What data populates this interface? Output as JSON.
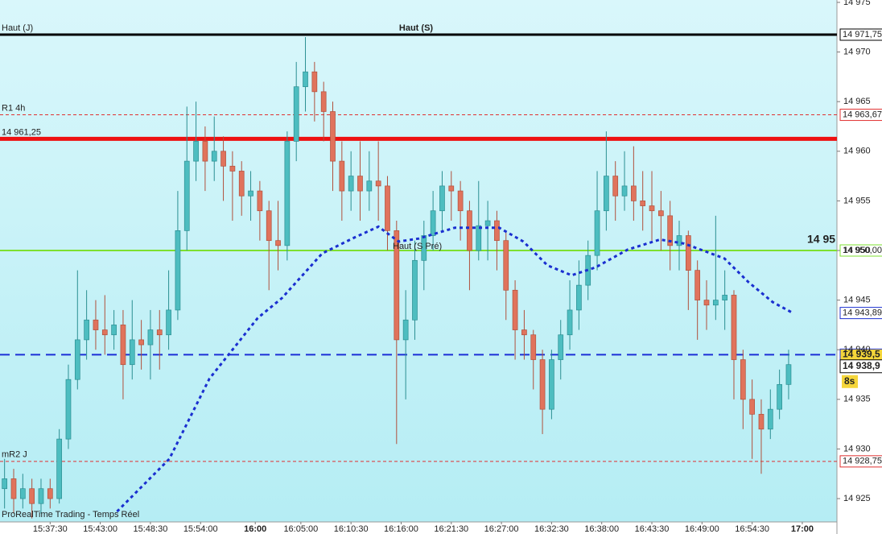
{
  "chart_data": {
    "type": "candlestick",
    "footer": "ProRealTime Trading - Temps Réel",
    "xlim": [
      932,
      1023.8
    ],
    "ylim": [
      14922.65,
      14975.24
    ],
    "xticks": [
      {
        "value": 937.5,
        "label": "15:37:30"
      },
      {
        "value": 943,
        "label": "15:43:00"
      },
      {
        "value": 948.5,
        "label": "15:48:30"
      },
      {
        "value": 954,
        "label": "15:54:00"
      },
      {
        "value": 960,
        "label": "16:00"
      },
      {
        "value": 965,
        "label": "16:05:00"
      },
      {
        "value": 970.5,
        "label": "16:10:30"
      },
      {
        "value": 976,
        "label": "16:16:00"
      },
      {
        "value": 981.5,
        "label": "16:21:30"
      },
      {
        "value": 987,
        "label": "16:27:00"
      },
      {
        "value": 992.5,
        "label": "16:32:30"
      },
      {
        "value": 998,
        "label": "16:38:00"
      },
      {
        "value": 1003.5,
        "label": "16:43:30"
      },
      {
        "value": 1009,
        "label": "16:49:00"
      },
      {
        "value": 1014.5,
        "label": "16:54:30"
      },
      {
        "value": 1020,
        "label": "17:00"
      }
    ],
    "yticks": [
      {
        "value": 14925,
        "label": "14 925"
      },
      {
        "value": 14930,
        "label": "14 930"
      },
      {
        "value": 14935,
        "label": "14 935"
      },
      {
        "value": 14940,
        "label": "14 940"
      },
      {
        "value": 14945,
        "label": "14 945"
      },
      {
        "value": 14950,
        "label": "14 950"
      },
      {
        "value": 14955,
        "label": "14 955"
      },
      {
        "value": 14960,
        "label": "14 960"
      },
      {
        "value": 14965,
        "label": "14 965"
      },
      {
        "value": 14970,
        "label": "14 970"
      },
      {
        "value": 14975,
        "label": "14 975"
      }
    ],
    "up_color": "#4dbdc0",
    "down_color": "#e0735c",
    "x": [
      932.5,
      933.5,
      934.5,
      935.5,
      936.5,
      937.5,
      938.5,
      939.5,
      940.5,
      941.5,
      942.5,
      943.5,
      944.5,
      945.5,
      946.5,
      947.5,
      948.5,
      949.5,
      950.5,
      951.5,
      952.5,
      953.5,
      954.5,
      955.5,
      956.5,
      957.5,
      958.5,
      959.5,
      960.5,
      961.5,
      962.5,
      963.5,
      964.5,
      965.5,
      966.5,
      967.5,
      968.5,
      969.5,
      970.5,
      971.5,
      972.5,
      973.5,
      974.5,
      975.5,
      976.5,
      977.5,
      978.5,
      979.5,
      980.5,
      981.5,
      982.5,
      983.5,
      984.5,
      985.5,
      986.5,
      987.5,
      988.5,
      989.5,
      990.5,
      991.5,
      992.5,
      993.5,
      994.5,
      995.5,
      996.5,
      997.5,
      998.5,
      999.5,
      1000.5,
      1001.5,
      1002.5,
      1003.5,
      1004.5,
      1005.5,
      1006.5,
      1007.5,
      1008.5,
      1009.5,
      1010.5,
      1011.5,
      1012.5,
      1013.5,
      1014.5,
      1015.5,
      1016.5,
      1017.5,
      1018.5
    ],
    "candles": [
      [
        14926,
        14929,
        14924,
        14927
      ],
      [
        14927,
        14928,
        14923.5,
        14925
      ],
      [
        14925,
        14927.5,
        14924,
        14926
      ],
      [
        14926,
        14927,
        14923,
        14924.5
      ],
      [
        14924.5,
        14927,
        14923.5,
        14926
      ],
      [
        14926,
        14927,
        14924,
        14925
      ],
      [
        14925,
        14932,
        14924.5,
        14931
      ],
      [
        14931,
        14938.5,
        14930,
        14937
      ],
      [
        14937,
        14948,
        14936,
        14941
      ],
      [
        14941,
        14946,
        14939,
        14943
      ],
      [
        14943,
        14945,
        14940,
        14942
      ],
      [
        14942,
        14945.5,
        14939.5,
        14941.5
      ],
      [
        14941.5,
        14944,
        14940,
        14942.5
      ],
      [
        14942.5,
        14944,
        14935,
        14938.5
      ],
      [
        14938.5,
        14945,
        14937,
        14941
      ],
      [
        14941,
        14943,
        14938,
        14940.5
      ],
      [
        14940.5,
        14944,
        14937,
        14942
      ],
      [
        14942,
        14944,
        14938,
        14941.5
      ],
      [
        14941.5,
        14948,
        14940,
        14944
      ],
      [
        14944,
        14956,
        14943,
        14952
      ],
      [
        14952,
        14964.5,
        14950,
        14959
      ],
      [
        14959,
        14965,
        14957,
        14961
      ],
      [
        14961,
        14962.5,
        14956,
        14959
      ],
      [
        14959,
        14963.5,
        14957,
        14960
      ],
      [
        14960,
        14961.5,
        14955,
        14958.5
      ],
      [
        14958.5,
        14960,
        14953,
        14958
      ],
      [
        14958,
        14959,
        14953.5,
        14955.5
      ],
      [
        14955.5,
        14958,
        14953,
        14956
      ],
      [
        14956,
        14957,
        14951,
        14954
      ],
      [
        14954,
        14955,
        14946,
        14951
      ],
      [
        14951,
        14955,
        14948,
        14950.5
      ],
      [
        14950.5,
        14962,
        14949,
        14961
      ],
      [
        14961,
        14969,
        14959,
        14966.5
      ],
      [
        14966.5,
        14971.5,
        14964,
        14968
      ],
      [
        14968,
        14969,
        14963,
        14966
      ],
      [
        14966,
        14967,
        14961,
        14964
      ],
      [
        14964,
        14965,
        14956,
        14959
      ],
      [
        14959,
        14961,
        14953,
        14956
      ],
      [
        14956,
        14960,
        14954,
        14957.5
      ],
      [
        14957.5,
        14961,
        14953,
        14956
      ],
      [
        14956,
        14960,
        14954,
        14957
      ],
      [
        14957,
        14961,
        14953,
        14956.5
      ],
      [
        14956.5,
        14957.5,
        14950,
        14952
      ],
      [
        14952,
        14953,
        14930.5,
        14941
      ],
      [
        14941,
        14946,
        14935,
        14943
      ],
      [
        14943,
        14951,
        14941,
        14949
      ],
      [
        14949,
        14953,
        14946,
        14951.5
      ],
      [
        14951.5,
        14956,
        14950,
        14954
      ],
      [
        14954,
        14958,
        14952,
        14956.5
      ],
      [
        14956.5,
        14958,
        14953,
        14956
      ],
      [
        14956,
        14957,
        14951,
        14954
      ],
      [
        14954,
        14955,
        14946,
        14950
      ],
      [
        14950,
        14957,
        14949,
        14952.5
      ],
      [
        14952.5,
        14955,
        14949,
        14953
      ],
      [
        14953,
        14954,
        14948,
        14951
      ],
      [
        14951,
        14952,
        14943,
        14946
      ],
      [
        14946,
        14947,
        14939,
        14942
      ],
      [
        14942,
        14944,
        14939,
        14941.5
      ],
      [
        14941.5,
        14942,
        14936,
        14939
      ],
      [
        14939,
        14940,
        14931.5,
        14934
      ],
      [
        14934,
        14940,
        14933,
        14939
      ],
      [
        14939,
        14943,
        14937,
        14941.5
      ],
      [
        14941.5,
        14947,
        14940,
        14944
      ],
      [
        14944,
        14949,
        14942,
        14946.5
      ],
      [
        14946.5,
        14951,
        14945,
        14949.5
      ],
      [
        14949.5,
        14958,
        14948,
        14954
      ],
      [
        14954,
        14962,
        14952,
        14957.5
      ],
      [
        14957.5,
        14959,
        14953,
        14955.5
      ],
      [
        14955.5,
        14960,
        14954,
        14956.5
      ],
      [
        14956.5,
        14960.5,
        14953,
        14955
      ],
      [
        14955,
        14958,
        14952,
        14954.5
      ],
      [
        14954.5,
        14958,
        14951,
        14954
      ],
      [
        14954,
        14956,
        14950,
        14953.5
      ],
      [
        14953.5,
        14955,
        14948,
        14950.5
      ],
      [
        14950.5,
        14953,
        14948,
        14951.5
      ],
      [
        14951.5,
        14952,
        14944,
        14948
      ],
      [
        14948,
        14949,
        14941,
        14945
      ],
      [
        14945,
        14947,
        14942,
        14944.5
      ],
      [
        14944.5,
        14953.5,
        14943,
        14945
      ],
      [
        14945,
        14948,
        14942,
        14945.5
      ],
      [
        14945.5,
        14946,
        14935,
        14939
      ],
      [
        14939,
        14940,
        14932,
        14935
      ],
      [
        14935,
        14937,
        14929,
        14933.5
      ],
      [
        14933.5,
        14935,
        14927.5,
        14932
      ],
      [
        14932,
        14936,
        14931,
        14934
      ],
      [
        14934,
        14938,
        14933,
        14936.5
      ],
      [
        14936.5,
        14940,
        14935,
        14938.5
      ]
    ],
    "ma": {
      "color": "#1a2fd0",
      "x": [
        944.83,
        950.57,
        954.98,
        960.27,
        962.92,
        967.33,
        970.86,
        973.51,
        975.72,
        977.93,
        981.9,
        986.75,
        989.4,
        992.05,
        994.7,
        997.34,
        1000.87,
        1004.4,
        1007.05,
        1011.46,
        1014.11,
        1016.76,
        1018.96
      ],
      "values": [
        14923.7,
        14929.0,
        14937.1,
        14943.2,
        14945.2,
        14949.7,
        14951.3,
        14952.4,
        14950.9,
        14951.2,
        14952.3,
        14952.3,
        14950.9,
        14948.5,
        14947.5,
        14948.3,
        14950.1,
        14951.1,
        14950.7,
        14949.2,
        14946.8,
        14944.8,
        14943.7
      ],
      "value_label": "14 943,89"
    },
    "levels": [
      {
        "value": 14971.75,
        "color": "#000000",
        "style": "solid-bold",
        "left": "Haut (J)",
        "center": "Haut (S)",
        "tag": "14 971,75"
      },
      {
        "value": 14963.67,
        "color": "#e03030",
        "style": "dashed",
        "left": "R1 4h",
        "tag": "14 963,67"
      },
      {
        "value": 14961.25,
        "color": "#ee1111",
        "style": "solid-heavy",
        "left": "14 961,25"
      },
      {
        "value": 14950,
        "color": "#7ee030",
        "style": "solid",
        "tag": "14 950,00",
        "side": "14 95"
      },
      {
        "value": 14939.5,
        "color": "#1c2fd6",
        "style": "dashed-bold",
        "tag": "14 939,5",
        "tag_fill": "#f5d63a"
      },
      {
        "value": 14928.75,
        "color": "#e03030",
        "style": "dashed",
        "left": "mR2 J",
        "tag": "14 928,75"
      }
    ],
    "last_price": {
      "value": 14938.9,
      "label": "14 938,9",
      "countdown": "8s"
    },
    "annotations": [
      "Haut (S Pré)"
    ]
  }
}
